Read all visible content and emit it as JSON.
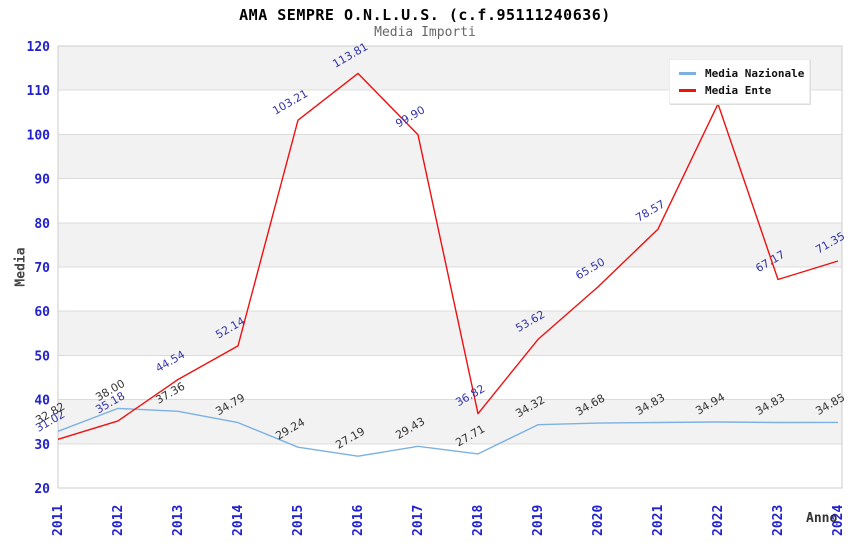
{
  "header": {
    "title": "AMA SEMPRE O.N.L.U.S. (c.f.95111240636)",
    "subtitle": "Media Importi"
  },
  "chart_data": {
    "type": "line",
    "x": [
      "2011",
      "2012",
      "2013",
      "2014",
      "2015",
      "2016",
      "2017",
      "2018",
      "2019",
      "2020",
      "2021",
      "2022",
      "2023",
      "2024"
    ],
    "xlabel": "Anno",
    "ylabel": "Media",
    "ylim": [
      20,
      120
    ],
    "ytick_step": 10,
    "grid": true,
    "banded_background": true,
    "legend_position": "top-right",
    "series": [
      {
        "name": "Media Nazionale",
        "color": "#7cb1e2",
        "label_color": "#333333",
        "values": [
          32.82,
          38.0,
          37.36,
          34.79,
          29.24,
          27.19,
          29.43,
          27.71,
          34.32,
          34.68,
          34.83,
          34.94,
          34.83,
          34.85
        ],
        "labels": [
          "32.82",
          "38.00",
          "37.36",
          "34.79",
          "29.24",
          "27.19",
          "29.43",
          "27.71",
          "34.32",
          "34.68",
          "34.83",
          "34.94",
          "34.83",
          "34.85"
        ]
      },
      {
        "name": "Media Ente",
        "color": "#ee1111",
        "label_color": "#3333aa",
        "values": [
          31.02,
          35.18,
          44.54,
          52.14,
          103.21,
          113.81,
          99.9,
          36.82,
          53.62,
          65.5,
          78.57,
          106.9,
          67.17,
          71.35
        ],
        "labels": [
          "31.02",
          "35.18",
          "44.54",
          "52.14",
          "103.21",
          "113.81",
          "99.90",
          "36.82",
          "53.62",
          "65.50",
          "78.57",
          "",
          "67.17",
          "71.35"
        ]
      }
    ]
  },
  "colors": {
    "band": "#f2f2f2",
    "grid": "#dcdcdc",
    "plot_border": "#cccccc",
    "tick_label": "#2222cc",
    "axis_title": "#444444",
    "title": "#000000",
    "subtitle": "#666666",
    "legend_bg": "#ffffff"
  }
}
